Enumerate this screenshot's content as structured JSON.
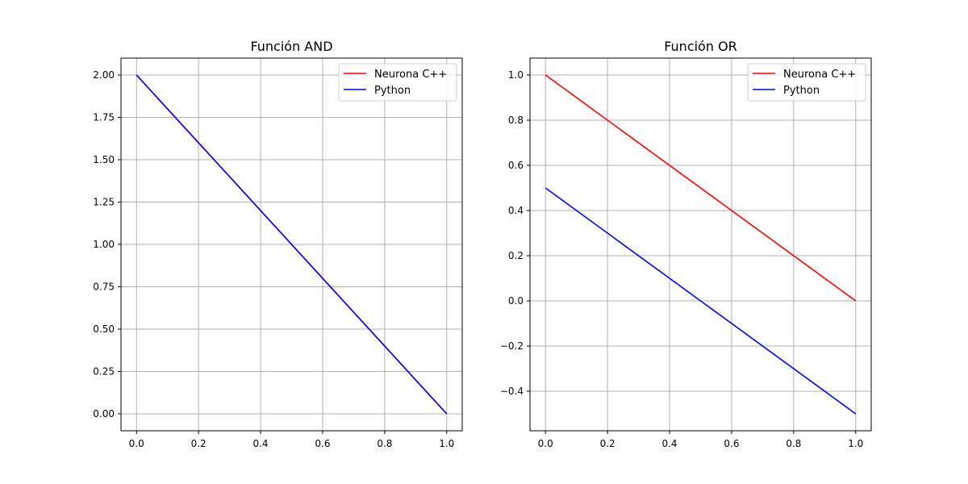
{
  "chart_data": [
    {
      "type": "line",
      "title": "Función AND",
      "xlabel": "",
      "ylabel": "",
      "xlim": [
        -0.05,
        1.05
      ],
      "ylim": [
        -0.1,
        2.1
      ],
      "x_ticks": [
        0.0,
        0.2,
        0.4,
        0.6,
        0.8,
        1.0
      ],
      "x_tick_labels": [
        "0.0",
        "0.2",
        "0.4",
        "0.6",
        "0.8",
        "1.0"
      ],
      "y_ticks": [
        0.0,
        0.25,
        0.5,
        0.75,
        1.0,
        1.25,
        1.5,
        1.75,
        2.0
      ],
      "y_tick_labels": [
        "0.00",
        "0.25",
        "0.50",
        "0.75",
        "1.00",
        "1.25",
        "1.50",
        "1.75",
        "2.00"
      ],
      "grid": true,
      "legend_position": "top-right",
      "series": [
        {
          "name": "Neurona C++",
          "color": "#ff0000",
          "x": [
            0.0,
            1.0
          ],
          "y": [
            2.0,
            0.0
          ]
        },
        {
          "name": "Python",
          "color": "#0000ff",
          "x": [
            0.0,
            1.0
          ],
          "y": [
            2.0,
            0.0
          ]
        }
      ]
    },
    {
      "type": "line",
      "title": "Función OR",
      "xlabel": "",
      "ylabel": "",
      "xlim": [
        -0.05,
        1.05
      ],
      "ylim": [
        -0.575,
        1.075
      ],
      "x_ticks": [
        0.0,
        0.2,
        0.4,
        0.6,
        0.8,
        1.0
      ],
      "x_tick_labels": [
        "0.0",
        "0.2",
        "0.4",
        "0.6",
        "0.8",
        "1.0"
      ],
      "y_ticks": [
        -0.4,
        -0.2,
        0.0,
        0.2,
        0.4,
        0.6,
        0.8,
        1.0
      ],
      "y_tick_labels": [
        "−0.4",
        "−0.2",
        "0.0",
        "0.2",
        "0.4",
        "0.6",
        "0.8",
        "1.0"
      ],
      "grid": true,
      "legend_position": "top-right",
      "series": [
        {
          "name": "Neurona C++",
          "color": "#ff0000",
          "x": [
            0.0,
            1.0
          ],
          "y": [
            1.0,
            0.0
          ]
        },
        {
          "name": "Python",
          "color": "#0000ff",
          "x": [
            0.0,
            1.0
          ],
          "y": [
            0.5,
            -0.5
          ]
        }
      ]
    }
  ]
}
